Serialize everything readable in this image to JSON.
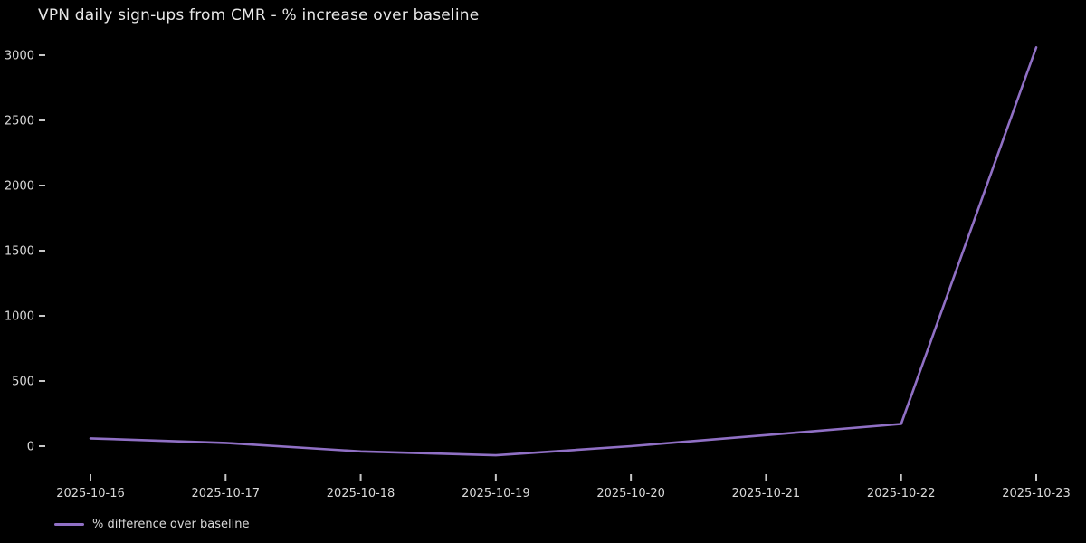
{
  "figure": {
    "title": "VPN daily sign-ups from CMR - % increase over baseline",
    "legend": {
      "label": "% difference over baseline"
    },
    "colors": {
      "background": "#000000",
      "title_text": "#e8e8e8",
      "tick_text": "#d9d9d9",
      "tick_mark": "#c8c8c8",
      "line": "#9070c5"
    }
  },
  "chart_data": {
    "type": "line",
    "title": "VPN daily sign-ups from CMR - % increase over baseline",
    "x": [
      "2025-10-16",
      "2025-10-17",
      "2025-10-18",
      "2025-10-19",
      "2025-10-20",
      "2025-10-21",
      "2025-10-22",
      "2025-10-23"
    ],
    "series": [
      {
        "name": "% difference over baseline",
        "color": "#9070c5",
        "values": [
          60,
          25,
          -40,
          -70,
          0,
          85,
          170,
          3060
        ]
      }
    ],
    "xlabel": "",
    "ylabel": "",
    "yticks": [
      0,
      500,
      1000,
      1500,
      2000,
      2500,
      3000
    ],
    "ylim": [
      -175,
      3150
    ],
    "grid": false,
    "legend_position": "bottom-left"
  }
}
